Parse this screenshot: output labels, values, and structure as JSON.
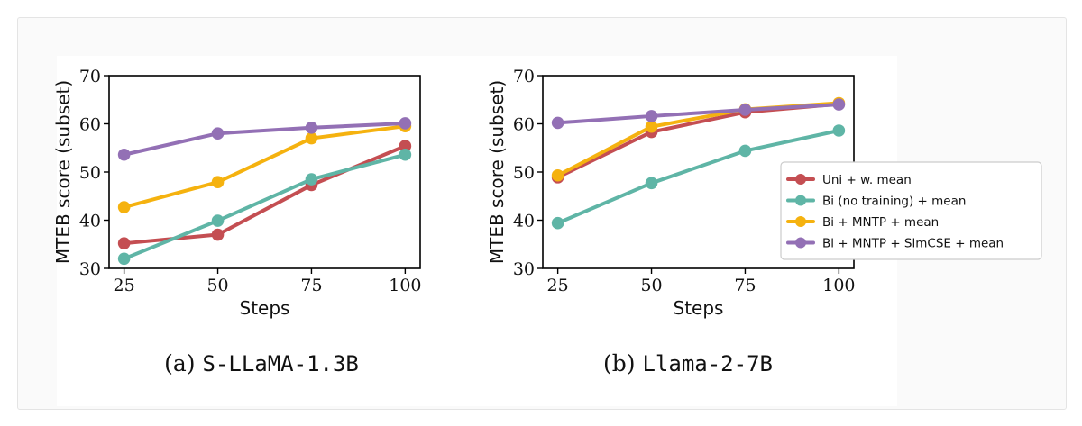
{
  "chart_data": [
    {
      "type": "line",
      "caption_prefix": "(a) ",
      "caption_model": "S-LLaMA-1.3B",
      "xlabel": "Steps",
      "ylabel": "MTEB score (subset)",
      "x": [
        25,
        50,
        75,
        100
      ],
      "xlim": [
        21,
        104
      ],
      "ylim": [
        30,
        70
      ],
      "yticks": [
        30,
        40,
        50,
        60,
        70
      ],
      "series": [
        {
          "name": "Uni + w. mean",
          "color": "#c44e52",
          "values": [
            35.2,
            37.0,
            47.3,
            55.4
          ]
        },
        {
          "name": "Bi (no training) + mean",
          "color": "#5fb5a6",
          "values": [
            32.0,
            39.9,
            48.5,
            53.6
          ]
        },
        {
          "name": "Bi + MNTP + mean",
          "color": "#f5b20f",
          "values": [
            42.7,
            47.9,
            57.0,
            59.5
          ]
        },
        {
          "name": "Bi + MNTP + SimCSE + mean",
          "color": "#9370b5",
          "values": [
            53.6,
            58.0,
            59.2,
            60.1
          ]
        }
      ]
    },
    {
      "type": "line",
      "caption_prefix": "(b) ",
      "caption_model": "Llama-2-7B",
      "xlabel": "Steps",
      "ylabel": "MTEB score (subset)",
      "x": [
        25,
        50,
        75,
        100
      ],
      "xlim": [
        21,
        104
      ],
      "ylim": [
        30,
        70
      ],
      "yticks": [
        30,
        40,
        50,
        60,
        70
      ],
      "legend_position": "center-right",
      "series": [
        {
          "name": "Uni + w. mean",
          "color": "#c44e52",
          "values": [
            48.9,
            58.3,
            62.4,
            64.1
          ]
        },
        {
          "name": "Bi (no training) + mean",
          "color": "#5fb5a6",
          "values": [
            39.4,
            47.7,
            54.4,
            58.6
          ]
        },
        {
          "name": "Bi + MNTP + mean",
          "color": "#f5b20f",
          "values": [
            49.3,
            59.4,
            63.0,
            64.3
          ]
        },
        {
          "name": "Bi + MNTP + SimCSE + mean",
          "color": "#9370b5",
          "values": [
            60.2,
            61.6,
            62.9,
            64.0
          ]
        }
      ]
    }
  ]
}
